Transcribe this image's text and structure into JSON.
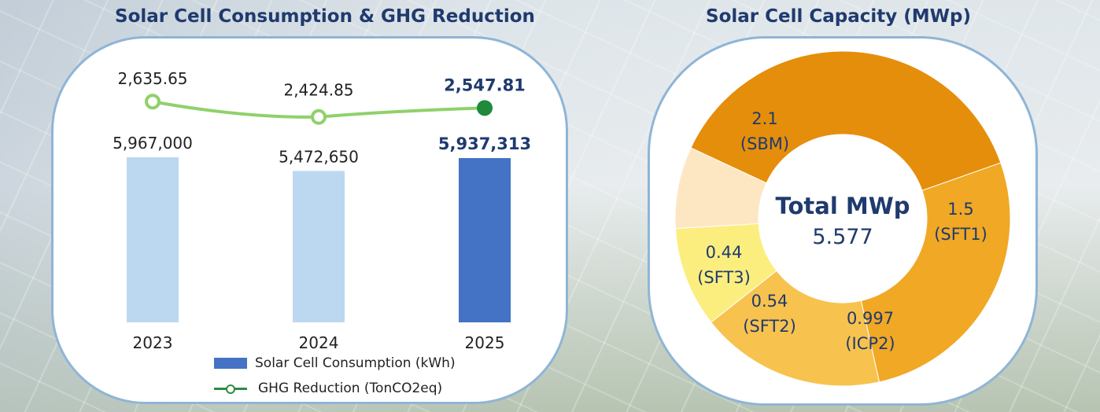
{
  "titles": {
    "left": "Solar Cell Consumption & GHG Reduction",
    "right": "Solar Cell Capacity (MWp)"
  },
  "chart_data": [
    {
      "type": "bar",
      "title": "Solar Cell Consumption & GHG Reduction",
      "categories": [
        "2023",
        "2024",
        "2025"
      ],
      "series": [
        {
          "name": "Solar Cell Consumption (kWh)",
          "values": [
            5967000,
            5472650,
            5937313
          ],
          "labels": [
            "5,967,000",
            "5,472,650",
            "5,937,313"
          ],
          "colors": [
            "#bcd8f1",
            "#bcd8f1",
            "#4472c4"
          ]
        },
        {
          "name": "GHG Reduction (TonCO2eq)",
          "type": "line",
          "values": [
            2635.65,
            2424.85,
            2547.81
          ],
          "labels": [
            "2,635.65",
            "2,424.85",
            "2,547.81"
          ],
          "color": "#8fd16b",
          "highlight_color": "#1e8a3a"
        }
      ],
      "legend": [
        "Solar Cell Consumption (kWh)",
        "GHG Reduction (TonCO2eq)"
      ],
      "legend_placement": "bottom"
    },
    {
      "type": "pie",
      "title": "Solar Cell Capacity (MWp)",
      "center_label": "Total MWp",
      "center_value": "5.577",
      "slices": [
        {
          "name": "SBM",
          "value": 2.1,
          "label": "2.1",
          "sub": "(SBM)",
          "color": "#e58e0c"
        },
        {
          "name": "SFT1",
          "value": 1.5,
          "label": "1.5",
          "sub": "(SFT1)",
          "color": "#f0a825"
        },
        {
          "name": "ICP2",
          "value": 0.997,
          "label": "0.997",
          "sub": "(ICP2)",
          "color": "#f7c24e"
        },
        {
          "name": "SFT2",
          "value": 0.54,
          "label": "0.54",
          "sub": "(SFT2)",
          "color": "#fbee7e"
        },
        {
          "name": "SFT3",
          "value": 0.44,
          "label": "0.44",
          "sub": "(SFT3)",
          "color": "#fde7c3"
        }
      ]
    }
  ]
}
